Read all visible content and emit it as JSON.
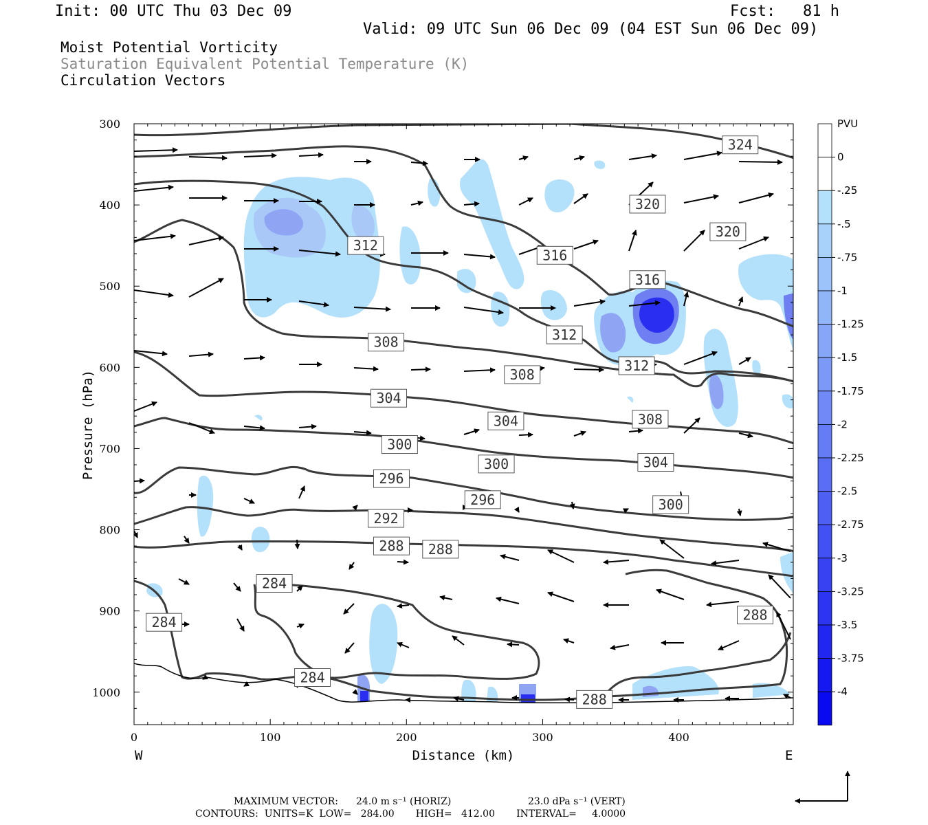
{
  "header": {
    "init": "Init: 00 UTC Thu 03 Dec 09",
    "fcst": "Fcst:   81 h",
    "valid": "Valid: 09 UTC Sun 06 Dec 09 (04 EST Sun 06 Dec 09)"
  },
  "titles": {
    "line1": "Moist Potential Vorticity",
    "line2": "Saturation Equivalent Potential Temperature (K)",
    "line3": "Circulation Vectors"
  },
  "footer": {
    "vector_label": "MAXIMUM VECTOR:",
    "horiz": "24.0 m s⁻¹ (HORIZ)",
    "vert": "23.0 dPa s⁻¹ (VERT)",
    "contours": "CONTOURS:  UNITS=K  LOW=   284.00       HIGH=   412.00       INTERVAL=     4.0000"
  },
  "colors": {
    "contour": "#3a3a3a",
    "pv_light": "#b3e0fb",
    "pv_mid": "#8fa5f4",
    "pv_dark": "#2a2ef0"
  },
  "chart_data": {
    "type": "cross-section",
    "xlabel": "Distance (km)",
    "ylabel": "Pressure (hPa)",
    "x_ticks": [
      "0",
      "100",
      "200",
      "300",
      "400"
    ],
    "y_ticks": [
      "300",
      "400",
      "500",
      "600",
      "700",
      "800",
      "900",
      "1000"
    ],
    "xlim": [
      0,
      484
    ],
    "ylim": [
      300,
      1040
    ],
    "left_end": "W",
    "right_end": "E",
    "colorbar": {
      "unit": "PVU",
      "labels": [
        "0",
        "-.25",
        "-.5",
        "-.75",
        "-1",
        "-1.25",
        "-1.5",
        "-1.75",
        "-2",
        "-2.25",
        "-2.5",
        "-2.75",
        "-3",
        "-3.25",
        "-3.5",
        "-3.75",
        "-4"
      ]
    },
    "contour_labels": [
      {
        "text": "324",
        "x": 445,
        "p": 326
      },
      {
        "text": "320",
        "x": 377,
        "p": 399
      },
      {
        "text": "320",
        "x": 436,
        "p": 433
      },
      {
        "text": "316",
        "x": 309,
        "p": 462
      },
      {
        "text": "316",
        "x": 377,
        "p": 492
      },
      {
        "text": "312",
        "x": 170,
        "p": 450
      },
      {
        "text": "312",
        "x": 316,
        "p": 560
      },
      {
        "text": "312",
        "x": 369,
        "p": 598
      },
      {
        "text": "308",
        "x": 185,
        "p": 569
      },
      {
        "text": "308",
        "x": 285,
        "p": 609
      },
      {
        "text": "308",
        "x": 379,
        "p": 664
      },
      {
        "text": "304",
        "x": 187,
        "p": 638
      },
      {
        "text": "304",
        "x": 273,
        "p": 666
      },
      {
        "text": "304",
        "x": 383,
        "p": 717
      },
      {
        "text": "300",
        "x": 195,
        "p": 695
      },
      {
        "text": "300",
        "x": 266,
        "p": 719
      },
      {
        "text": "300",
        "x": 394,
        "p": 769
      },
      {
        "text": "296",
        "x": 189,
        "p": 737
      },
      {
        "text": "296",
        "x": 256,
        "p": 763
      },
      {
        "text": "292",
        "x": 185,
        "p": 786
      },
      {
        "text": "288",
        "x": 189,
        "p": 820
      },
      {
        "text": "288",
        "x": 225,
        "p": 824
      },
      {
        "text": "288",
        "x": 456,
        "p": 905
      },
      {
        "text": "288",
        "x": 338,
        "p": 1009
      },
      {
        "text": "284",
        "x": 103,
        "p": 866
      },
      {
        "text": "284",
        "x": 22,
        "p": 914
      },
      {
        "text": "284",
        "x": 131,
        "p": 982
      }
    ]
  }
}
